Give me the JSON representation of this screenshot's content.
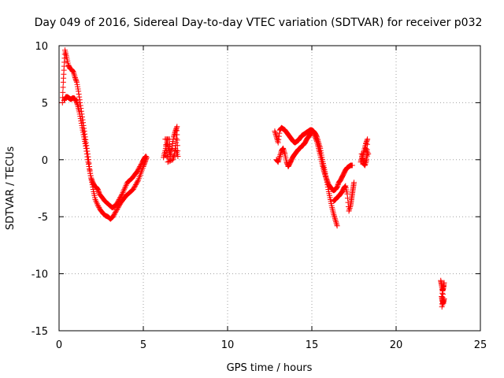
{
  "chart_data": {
    "type": "scatter",
    "title": "Day 049 of 2016, Sidereal Day-to-day VTEC variation (SDTVAR) for receiver p032",
    "xlabel": "GPS time / hours",
    "ylabel": "SDTVAR / TECUs",
    "xlim": [
      0,
      25
    ],
    "ylim": [
      -15,
      10
    ],
    "xticks": [
      0,
      5,
      10,
      15,
      20,
      25
    ],
    "yticks": [
      -15,
      -10,
      -5,
      0,
      5,
      10
    ],
    "xtick_labels": [
      "0",
      "5",
      "10",
      "15",
      "20",
      "25"
    ],
    "ytick_labels": [
      "-15",
      "-10",
      "-5",
      "0",
      "5",
      "10"
    ],
    "grid": true,
    "marker": "+",
    "series": [
      {
        "color": "#ff0000",
        "segments": [
          [
            [
              0.2,
              5.0
            ],
            [
              0.25,
              6.8
            ],
            [
              0.3,
              8.2
            ],
            [
              0.35,
              9.6
            ],
            [
              0.45,
              9.0
            ],
            [
              0.55,
              8.3
            ],
            [
              0.65,
              8.0
            ],
            [
              0.75,
              7.9
            ],
            [
              0.85,
              7.7
            ],
            [
              0.95,
              7.2
            ],
            [
              1.05,
              6.8
            ],
            [
              1.15,
              6.0
            ],
            [
              1.25,
              5.0
            ],
            [
              1.35,
              4.0
            ],
            [
              1.45,
              3.0
            ],
            [
              1.55,
              2.0
            ],
            [
              1.65,
              1.0
            ],
            [
              1.75,
              0.0
            ],
            [
              1.85,
              -1.2
            ],
            [
              1.95,
              -2.0
            ],
            [
              2.05,
              -2.8
            ],
            [
              2.15,
              -3.5
            ],
            [
              2.3,
              -4.0
            ],
            [
              2.45,
              -4.4
            ],
            [
              2.6,
              -4.7
            ],
            [
              2.75,
              -4.9
            ],
            [
              2.9,
              -5.0
            ],
            [
              3.05,
              -5.2
            ],
            [
              3.2,
              -5.0
            ],
            [
              3.35,
              -4.6
            ],
            [
              3.5,
              -4.2
            ],
            [
              3.65,
              -3.8
            ],
            [
              3.8,
              -3.5
            ],
            [
              3.95,
              -3.2
            ],
            [
              4.1,
              -3.0
            ],
            [
              4.25,
              -2.8
            ],
            [
              4.4,
              -2.6
            ],
            [
              4.55,
              -2.2
            ],
            [
              4.7,
              -1.8
            ],
            [
              4.85,
              -1.2
            ],
            [
              5.0,
              -0.6
            ],
            [
              5.1,
              -0.2
            ],
            [
              5.2,
              0.2
            ]
          ],
          [
            [
              0.3,
              5.2
            ],
            [
              0.4,
              5.5
            ],
            [
              0.5,
              5.5
            ],
            [
              0.6,
              5.4
            ],
            [
              0.7,
              5.3
            ],
            [
              0.8,
              5.4
            ],
            [
              0.9,
              5.4
            ],
            [
              1.0,
              5.2
            ],
            [
              1.1,
              4.8
            ],
            [
              1.2,
              4.2
            ],
            [
              1.3,
              3.4
            ],
            [
              1.4,
              2.6
            ],
            [
              1.5,
              1.8
            ],
            [
              1.6,
              1.0
            ],
            [
              1.7,
              0.0
            ],
            [
              1.8,
              -0.8
            ],
            [
              1.9,
              -1.6
            ],
            [
              2.0,
              -2.0
            ],
            [
              2.1,
              -2.3
            ],
            [
              2.2,
              -2.4
            ],
            [
              2.3,
              -2.6
            ],
            [
              2.4,
              -3.0
            ],
            [
              2.55,
              -3.3
            ],
            [
              2.7,
              -3.6
            ],
            [
              2.85,
              -3.8
            ],
            [
              3.0,
              -4.0
            ],
            [
              3.15,
              -4.2
            ],
            [
              3.3,
              -4.1
            ],
            [
              3.45,
              -3.8
            ],
            [
              3.6,
              -3.4
            ],
            [
              3.75,
              -3.0
            ],
            [
              3.9,
              -2.5
            ],
            [
              4.05,
              -2.0
            ],
            [
              4.2,
              -1.8
            ],
            [
              4.35,
              -1.6
            ],
            [
              4.5,
              -1.3
            ],
            [
              4.65,
              -1.0
            ],
            [
              4.8,
              -0.6
            ],
            [
              4.95,
              -0.2
            ],
            [
              5.05,
              0.1
            ],
            [
              5.15,
              0.3
            ]
          ],
          [
            [
              6.2,
              0.2
            ],
            [
              6.3,
              0.8
            ],
            [
              6.4,
              1.5
            ],
            [
              6.5,
              1.0
            ],
            [
              6.6,
              0.3
            ],
            [
              6.7,
              1.2
            ],
            [
              6.8,
              2.0
            ],
            [
              6.9,
              2.5
            ],
            [
              7.0,
              2.9
            ],
            [
              6.95,
              1.5
            ],
            [
              6.85,
              0.5
            ],
            [
              6.75,
              0.0
            ],
            [
              6.45,
              -0.2
            ],
            [
              6.3,
              1.8
            ],
            [
              6.55,
              1.8
            ],
            [
              6.6,
              0.0
            ],
            [
              6.25,
              0.5
            ],
            [
              6.9,
              1.0
            ],
            [
              7.05,
              0.3
            ],
            [
              7.0,
              2.2
            ]
          ],
          [
            [
              12.8,
              2.5
            ],
            [
              12.9,
              2.0
            ],
            [
              13.0,
              1.5
            ],
            [
              13.1,
              2.6
            ],
            [
              13.2,
              2.8
            ],
            [
              13.3,
              2.7
            ],
            [
              13.4,
              2.6
            ],
            [
              13.5,
              2.4
            ],
            [
              13.6,
              2.2
            ],
            [
              13.7,
              2.0
            ],
            [
              13.8,
              1.8
            ],
            [
              13.9,
              1.6
            ],
            [
              14.0,
              1.5
            ],
            [
              14.1,
              1.6
            ],
            [
              14.2,
              1.7
            ],
            [
              14.3,
              1.9
            ],
            [
              14.4,
              2.1
            ],
            [
              14.5,
              2.2
            ],
            [
              14.6,
              2.3
            ],
            [
              14.7,
              2.4
            ],
            [
              14.8,
              2.5
            ],
            [
              14.9,
              2.6
            ],
            [
              15.0,
              2.6
            ],
            [
              15.1,
              2.5
            ],
            [
              15.2,
              2.3
            ],
            [
              15.3,
              2.0
            ],
            [
              15.4,
              1.5
            ],
            [
              15.5,
              1.0
            ],
            [
              15.6,
              0.2
            ],
            [
              15.7,
              -0.5
            ],
            [
              15.8,
              -1.2
            ],
            [
              15.9,
              -2.0
            ],
            [
              16.0,
              -2.8
            ],
            [
              16.1,
              -3.5
            ],
            [
              16.2,
              -4.2
            ],
            [
              16.3,
              -4.8
            ],
            [
              16.4,
              -5.3
            ],
            [
              16.5,
              -5.8
            ]
          ],
          [
            [
              12.9,
              0.0
            ],
            [
              13.0,
              -0.2
            ],
            [
              13.1,
              0.3
            ],
            [
              13.2,
              0.8
            ],
            [
              13.3,
              1.0
            ],
            [
              13.4,
              0.5
            ],
            [
              13.5,
              -0.2
            ],
            [
              13.6,
              -0.6
            ],
            [
              13.7,
              -0.3
            ],
            [
              13.8,
              0.0
            ],
            [
              13.9,
              0.3
            ],
            [
              14.0,
              0.5
            ],
            [
              14.1,
              0.7
            ],
            [
              14.2,
              0.9
            ],
            [
              14.3,
              1.0
            ],
            [
              14.4,
              1.2
            ],
            [
              14.5,
              1.3
            ],
            [
              14.6,
              1.5
            ],
            [
              14.7,
              1.8
            ],
            [
              14.8,
              2.0
            ],
            [
              14.9,
              2.2
            ],
            [
              15.0,
              2.4
            ],
            [
              15.1,
              2.4
            ],
            [
              15.2,
              2.0
            ],
            [
              15.3,
              1.6
            ],
            [
              15.4,
              1.0
            ],
            [
              15.5,
              0.4
            ],
            [
              15.6,
              -0.3
            ],
            [
              15.7,
              -0.9
            ],
            [
              15.8,
              -1.4
            ],
            [
              15.9,
              -1.8
            ],
            [
              16.0,
              -2.2
            ],
            [
              16.1,
              -2.4
            ],
            [
              16.2,
              -2.6
            ],
            [
              16.3,
              -2.7
            ],
            [
              16.4,
              -2.6
            ],
            [
              16.5,
              -2.4
            ],
            [
              16.6,
              -2.0
            ],
            [
              16.7,
              -1.8
            ],
            [
              16.8,
              -1.5
            ],
            [
              16.9,
              -1.2
            ],
            [
              17.0,
              -0.9
            ],
            [
              17.1,
              -0.7
            ],
            [
              17.2,
              -0.6
            ],
            [
              17.3,
              -0.5
            ],
            [
              17.4,
              -0.5
            ]
          ],
          [
            [
              16.3,
              -3.6
            ],
            [
              16.4,
              -3.5
            ],
            [
              16.5,
              -3.3
            ],
            [
              16.6,
              -3.2
            ],
            [
              16.7,
              -3.0
            ],
            [
              16.8,
              -2.8
            ],
            [
              16.9,
              -2.5
            ],
            [
              17.0,
              -2.3
            ],
            [
              17.1,
              -3.0
            ],
            [
              17.2,
              -4.5
            ],
            [
              17.3,
              -4.0
            ],
            [
              17.35,
              -3.5
            ],
            [
              17.4,
              -3.0
            ],
            [
              17.45,
              -2.5
            ],
            [
              17.5,
              -2.0
            ]
          ],
          [
            [
              17.9,
              -0.2
            ],
            [
              18.0,
              0.3
            ],
            [
              18.1,
              0.8
            ],
            [
              18.2,
              1.4
            ],
            [
              18.3,
              1.8
            ],
            [
              18.25,
              0.0
            ],
            [
              18.15,
              -0.5
            ],
            [
              18.05,
              -0.3
            ],
            [
              17.95,
              0.5
            ],
            [
              18.1,
              -0.2
            ],
            [
              18.35,
              0.5
            ],
            [
              18.2,
              1.0
            ]
          ],
          [
            [
              22.65,
              -10.6
            ],
            [
              22.7,
              -11.0
            ],
            [
              22.75,
              -11.5
            ],
            [
              22.8,
              -11.3
            ],
            [
              22.85,
              -10.8
            ],
            [
              22.7,
              -12.0
            ],
            [
              22.75,
              -12.4
            ],
            [
              22.8,
              -12.6
            ],
            [
              22.85,
              -12.2
            ],
            [
              22.72,
              -12.9
            ],
            [
              22.78,
              -11.8
            ]
          ]
        ]
      }
    ]
  }
}
